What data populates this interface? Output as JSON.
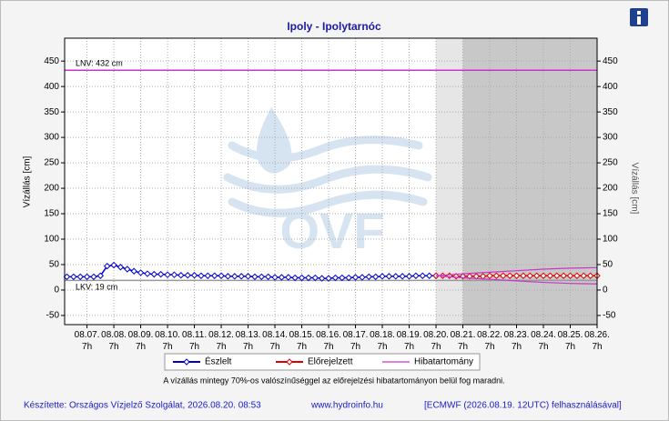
{
  "chart_data": {
    "type": "hydrograph",
    "title": "Ipoly - Ipolytarnóc",
    "y_label": "Vízállás [cm]",
    "y2_label": "Vízállás [cm]",
    "watermark": "OVF",
    "xlim": [
      "08.06. 11h",
      "08.26. 7h"
    ],
    "xticks": [
      "08.07. 7h",
      "08.08. 7h",
      "08.09. 7h",
      "08.10. 7h",
      "08.11. 7h",
      "08.12. 7h",
      "08.13. 7h",
      "08.14. 7h",
      "08.15. 7h",
      "08.16. 7h",
      "08.17. 7h",
      "08.18. 7h",
      "08.19. 7h",
      "08.20. 7h",
      "08.21. 7h",
      "08.22. 7h",
      "08.23. 7h",
      "08.24. 7h",
      "08.25. 7h",
      "08.26. 7h"
    ],
    "ylim": [
      -68,
      495
    ],
    "yticks": [
      -50,
      0,
      50,
      100,
      150,
      200,
      250,
      300,
      350,
      400,
      450
    ],
    "y2lim": [
      -68,
      495
    ],
    "y2ticks": [
      -50,
      0,
      50,
      100,
      150,
      200,
      250,
      300,
      350,
      400,
      450
    ],
    "grid": true,
    "shaded_regions": [
      {
        "from": "08.20. 7h",
        "to": "08.21. 7h",
        "color": "#e6e6e6"
      },
      {
        "from": "08.21. 7h",
        "to": "08.26. 7h",
        "color": "#c8c8c8"
      }
    ],
    "ref_lines": [
      {
        "label": "LNV: 432 cm",
        "value": 432,
        "color": "#cc33cc"
      },
      {
        "label": "LKV: 19 cm",
        "value": 19,
        "color": "#999999"
      }
    ],
    "series": [
      {
        "name": "Észlelt",
        "color": "#0000cc",
        "marker_fill": "#ffffff",
        "x": [
          "08.06. 13h",
          "08.06. 19h",
          "08.07. 1h",
          "08.07. 7h",
          "08.07. 13h",
          "08.07. 19h",
          "08.08. 1h",
          "08.08. 7h",
          "08.08. 13h",
          "08.08. 19h",
          "08.09. 1h",
          "08.09. 7h",
          "08.09. 13h",
          "08.09. 19h",
          "08.10. 1h",
          "08.10. 7h",
          "08.10. 13h",
          "08.10. 19h",
          "08.11. 1h",
          "08.11. 7h",
          "08.11. 13h",
          "08.11. 19h",
          "08.12. 1h",
          "08.12. 7h",
          "08.12. 13h",
          "08.12. 19h",
          "08.13. 1h",
          "08.13. 7h",
          "08.13. 13h",
          "08.13. 19h",
          "08.14. 1h",
          "08.14. 7h",
          "08.14. 13h",
          "08.14. 19h",
          "08.15. 1h",
          "08.15. 7h",
          "08.15. 13h",
          "08.15. 19h",
          "08.16. 1h",
          "08.16. 7h",
          "08.16. 13h",
          "08.16. 19h",
          "08.17. 1h",
          "08.17. 7h",
          "08.17. 13h",
          "08.17. 19h",
          "08.18. 1h",
          "08.18. 7h",
          "08.18. 13h",
          "08.18. 19h",
          "08.19. 1h",
          "08.19. 7h",
          "08.19. 13h",
          "08.19. 19h",
          "08.20. 1h",
          "08.20. 7h"
        ],
        "values": [
          26,
          26,
          26,
          26,
          26,
          28,
          47,
          49,
          45,
          41,
          37,
          34,
          32,
          31,
          31,
          30,
          30,
          29,
          29,
          29,
          28,
          28,
          28,
          28,
          27,
          27,
          27,
          27,
          26,
          26,
          26,
          25,
          25,
          25,
          24,
          24,
          24,
          24,
          23,
          23,
          24,
          24,
          24,
          25,
          25,
          26,
          26,
          27,
          27,
          27,
          27,
          27,
          28,
          28,
          28,
          28
        ]
      },
      {
        "name": "Előrejelzett",
        "color": "#dd0000",
        "marker_fill": "#ffffff",
        "x": [
          "08.20. 7h",
          "08.20. 13h",
          "08.20. 19h",
          "08.21. 1h",
          "08.21. 7h",
          "08.21. 13h",
          "08.21. 19h",
          "08.22. 1h",
          "08.22. 7h",
          "08.22. 13h",
          "08.22. 19h",
          "08.23. 1h",
          "08.23. 7h",
          "08.23. 13h",
          "08.23. 19h",
          "08.24. 1h",
          "08.24. 7h",
          "08.24. 13h",
          "08.24. 19h",
          "08.25. 1h",
          "08.25. 7h",
          "08.25. 13h",
          "08.25. 19h",
          "08.26. 1h",
          "08.26. 7h"
        ],
        "values": [
          28,
          28,
          28,
          27,
          27,
          27,
          27,
          27,
          28,
          28,
          28,
          28,
          28,
          28,
          28,
          28,
          28,
          28,
          28,
          28,
          28,
          28,
          28,
          28,
          28
        ]
      },
      {
        "name": "Hibatartomány",
        "color": "#cc33cc",
        "x": [
          "08.20. 7h",
          "08.21. 7h",
          "08.22. 7h",
          "08.23. 7h",
          "08.24. 7h",
          "08.25. 7h",
          "08.26. 7h"
        ],
        "upper": [
          28,
          32,
          35,
          38,
          41,
          43,
          44
        ],
        "lower": [
          28,
          24,
          21,
          18,
          15,
          13,
          12
        ]
      }
    ],
    "note": "A vízállás mintegy 70%-os valószínűséggel az előrejelzési hibatartományon belül fog maradni.",
    "footer": [
      "Készítette: Országos Vízjelző Szolgálat, 2026.08.20. 08:53",
      "www.hydroinfo.hu",
      "[ECMWF (2026.08.19. 12UTC) felhasználásával]"
    ]
  }
}
